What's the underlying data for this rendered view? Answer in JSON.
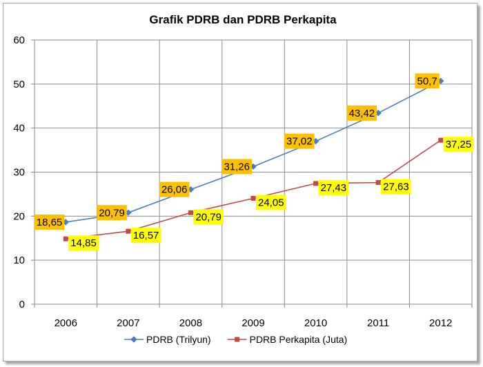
{
  "chart_data": {
    "type": "line",
    "title": "Grafik PDRB dan PDRB Perkapita",
    "categories": [
      "2006",
      "2007",
      "2008",
      "2009",
      "2010",
      "2011",
      "2012"
    ],
    "ylim": [
      0,
      60
    ],
    "yticks": [
      "0",
      "10",
      "20",
      "30",
      "40",
      "50",
      "60"
    ],
    "grid": true,
    "legend_position": "bottom",
    "series": [
      {
        "name": "PDRB (Trilyun)",
        "values": [
          18.65,
          20.79,
          26.06,
          31.26,
          37.02,
          43.42,
          50.7
        ],
        "labels": [
          "18,65",
          "20,79",
          "26,06",
          "31,26",
          "37,02",
          "43,42",
          "50,7"
        ],
        "color": "#4a7ebb",
        "marker": "diamond",
        "label_color": "#ffc000"
      },
      {
        "name": "PDRB Perkapita (Juta)",
        "values": [
          14.85,
          16.57,
          20.79,
          24.05,
          27.43,
          27.63,
          37.25
        ],
        "labels": [
          "14,85",
          "16,57",
          "20,79",
          "24,05",
          "27,43",
          "27,63",
          "37,25"
        ],
        "color": "#be4b48",
        "marker": "square",
        "label_color": "#ffff00"
      }
    ]
  }
}
